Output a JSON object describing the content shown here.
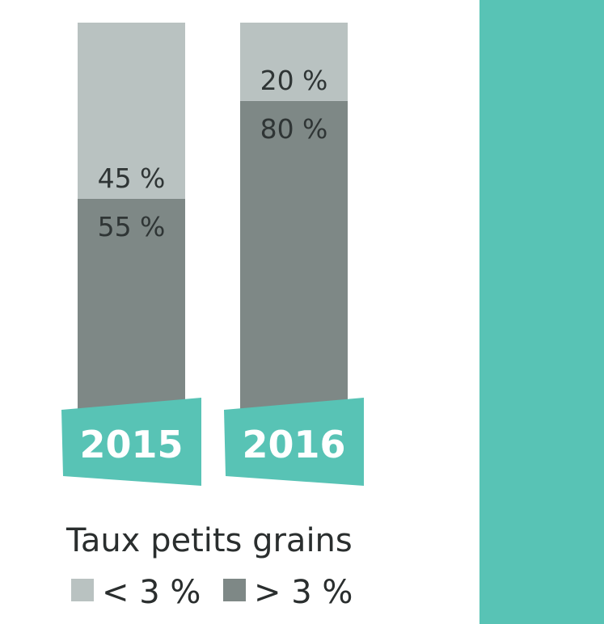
{
  "chart_data": {
    "type": "bar",
    "stacked": true,
    "categories": [
      "2015",
      "2016"
    ],
    "series": [
      {
        "name": "> 3 %",
        "values": [
          55,
          80
        ],
        "color": "#7e8886"
      },
      {
        "name": "< 3 %",
        "values": [
          45,
          20
        ],
        "color": "#b9c2c1"
      }
    ],
    "data_labels": [
      [
        "55 %",
        "80 %"
      ],
      [
        "45 %",
        "20 %"
      ]
    ],
    "ylim": [
      0,
      100
    ],
    "legend": {
      "title": "Taux petits grains",
      "items": [
        {
          "label": "< 3 %",
          "color": "#b9c2c1"
        },
        {
          "label": "> 3 %",
          "color": "#7e8886"
        }
      ]
    },
    "accent_color": "#58c3b5"
  }
}
